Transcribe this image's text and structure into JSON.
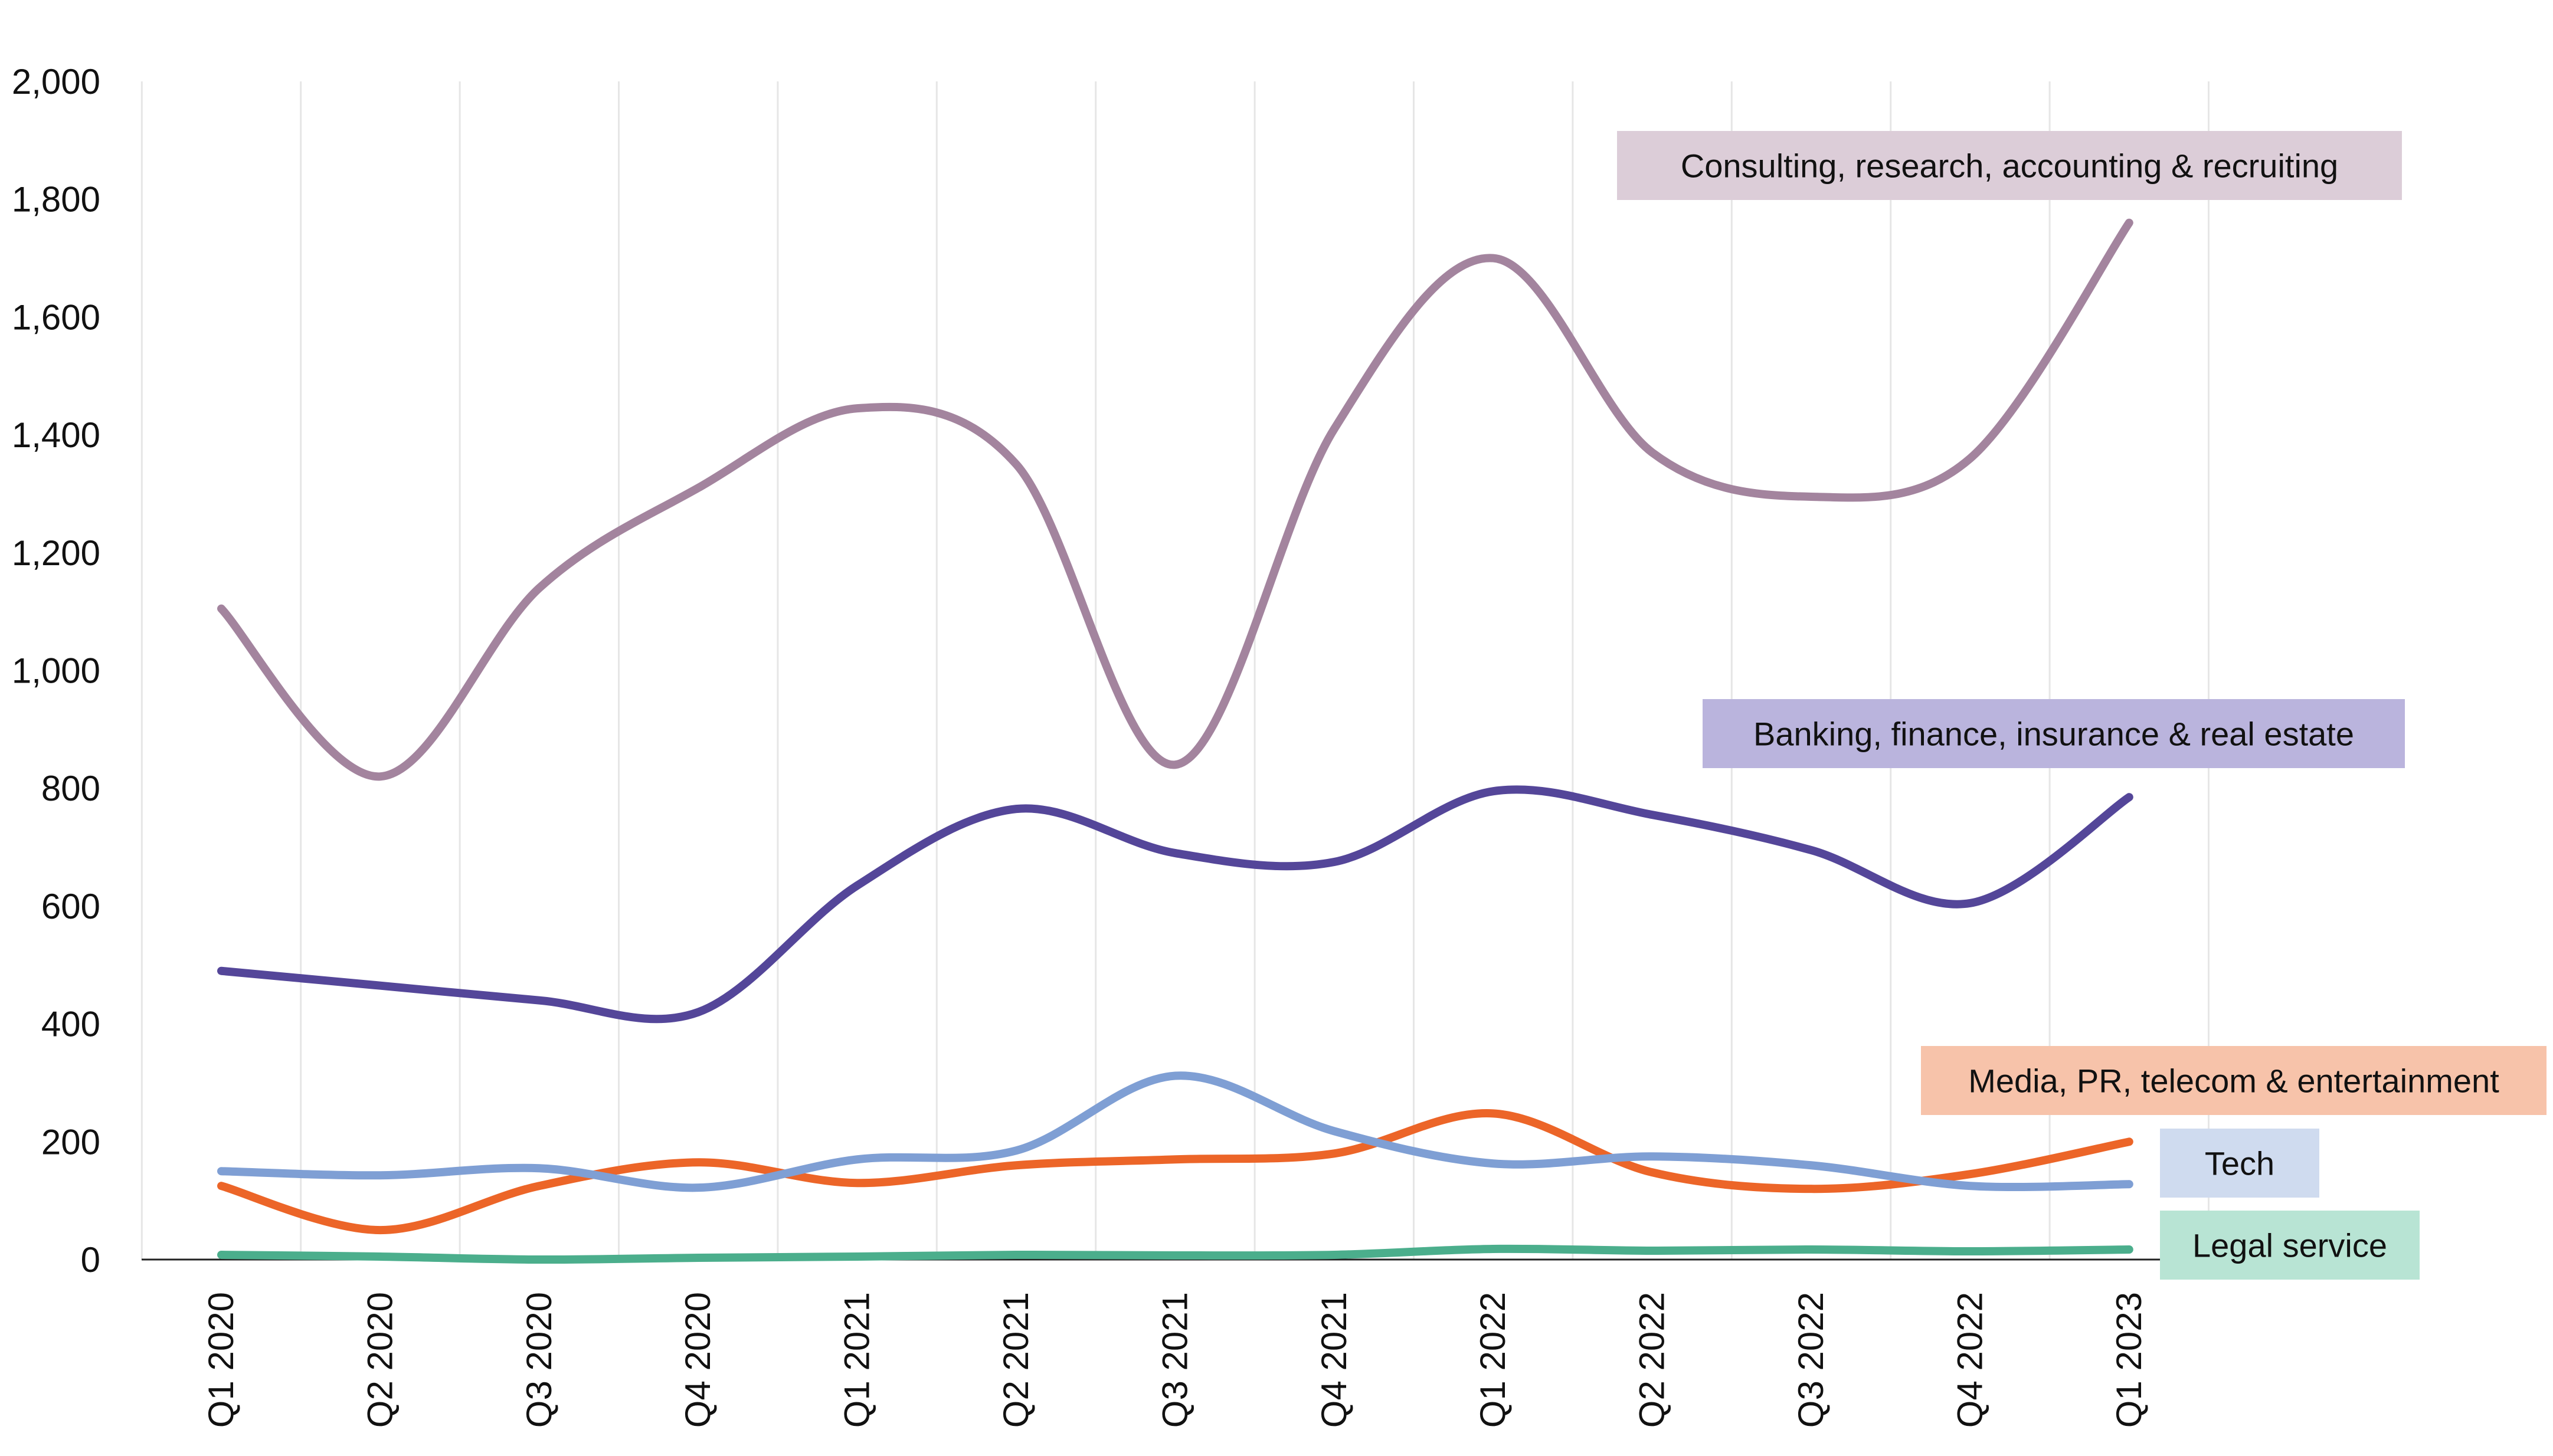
{
  "chart_data": {
    "type": "line",
    "title": "",
    "xlabel": "",
    "ylabel": "",
    "categories": [
      "Q1 2020",
      "Q2 2020",
      "Q3 2020",
      "Q4 2020",
      "Q1 2021",
      "Q2 2021",
      "Q3 2021",
      "Q4 2021",
      "Q1 2022",
      "Q2 2022",
      "Q3 2022",
      "Q4 2022",
      "Q1 2023"
    ],
    "ylim": [
      0,
      2000
    ],
    "yticks": [
      0,
      200,
      400,
      600,
      800,
      1000,
      1200,
      1400,
      1600,
      1800,
      2000
    ],
    "ytick_labels": [
      "0",
      "200",
      "400",
      "600",
      "800",
      "1,000",
      "1,200",
      "1,400",
      "1,600",
      "1,800",
      "2,000"
    ],
    "grid": "vertical",
    "smooth": true,
    "series": [
      {
        "name": "Consulting, research, accounting & recruiting",
        "color": "#a3849e",
        "label_bg": "#dccdd8",
        "values": [
          1105,
          820,
          1140,
          1310,
          1445,
          1350,
          840,
          1410,
          1700,
          1370,
          1295,
          1360,
          1760
        ]
      },
      {
        "name": "Banking, finance, insurance & real estate",
        "color": "#544699",
        "label_bg": "#bab4dd",
        "values": [
          490,
          465,
          440,
          420,
          635,
          765,
          690,
          675,
          795,
          755,
          695,
          605,
          785
        ]
      },
      {
        "name": "Media, PR, telecom & entertainment",
        "color": "#ec6528",
        "label_bg": "#f7c3aa",
        "values": [
          125,
          50,
          125,
          165,
          130,
          160,
          170,
          180,
          248,
          148,
          120,
          145,
          200
        ]
      },
      {
        "name": "Tech",
        "color": "#7f9fd4",
        "label_bg": "#cfdbef",
        "values": [
          150,
          143,
          155,
          122,
          170,
          185,
          312,
          218,
          163,
          175,
          160,
          125,
          128
        ]
      },
      {
        "name": "Legal service",
        "color": "#4bae8c",
        "label_bg": "#b8e4d4",
        "values": [
          8,
          5,
          0,
          3,
          5,
          8,
          7,
          8,
          18,
          15,
          17,
          14,
          17
        ]
      }
    ]
  }
}
